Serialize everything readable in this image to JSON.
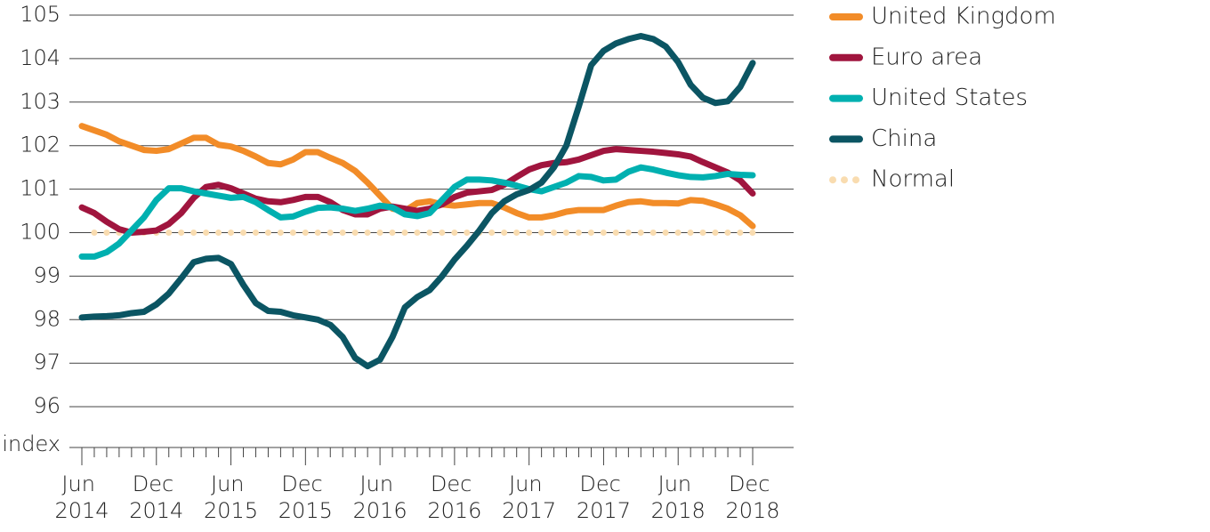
{
  "chart_data": {
    "type": "line",
    "ylabel": "index",
    "categories": [
      "Jun 2014",
      null,
      null,
      null,
      null,
      null,
      "Dec 2014",
      null,
      null,
      null,
      null,
      null,
      "Jun 2015",
      null,
      null,
      null,
      null,
      null,
      "Dec 2015",
      null,
      null,
      null,
      null,
      null,
      "Jun 2016",
      null,
      null,
      null,
      null,
      null,
      "Dec 2016",
      null,
      null,
      null,
      null,
      null,
      "Jun 2017",
      null,
      null,
      null,
      null,
      null,
      "Dec 2017",
      null,
      null,
      null,
      null,
      null,
      "Jun 2018",
      null,
      null,
      null,
      null,
      null,
      "Dec 2018"
    ],
    "ylim": [
      95,
      105
    ],
    "yticks": [
      96,
      97,
      98,
      99,
      100,
      101,
      102,
      103,
      104,
      105
    ],
    "grid": true,
    "legend": "right",
    "series": [
      {
        "name": "United Kingdom",
        "color": "#f28c28",
        "style": "solid",
        "values": [
          102.45,
          102.35,
          102.25,
          102.1,
          102.0,
          101.9,
          101.88,
          101.92,
          102.05,
          102.18,
          102.18,
          102.02,
          101.98,
          101.88,
          101.75,
          101.6,
          101.57,
          101.68,
          101.85,
          101.85,
          101.72,
          101.6,
          101.42,
          101.15,
          100.85,
          100.55,
          100.5,
          100.68,
          100.72,
          100.65,
          100.62,
          100.65,
          100.68,
          100.68,
          100.58,
          100.45,
          100.35,
          100.35,
          100.4,
          100.48,
          100.52,
          100.52,
          100.52,
          100.62,
          100.7,
          100.72,
          100.68,
          100.68,
          100.67,
          100.75,
          100.73,
          100.65,
          100.55,
          100.4,
          100.15
        ]
      },
      {
        "name": "Euro area",
        "color": "#a0153e",
        "style": "solid",
        "values": [
          100.58,
          100.45,
          100.25,
          100.08,
          100.0,
          100.02,
          100.05,
          100.2,
          100.45,
          100.8,
          101.05,
          101.1,
          101.02,
          100.9,
          100.78,
          100.72,
          100.7,
          100.75,
          100.82,
          100.82,
          100.7,
          100.52,
          100.42,
          100.42,
          100.55,
          100.6,
          100.55,
          100.5,
          100.55,
          100.65,
          100.82,
          100.92,
          100.95,
          100.98,
          101.1,
          101.28,
          101.45,
          101.55,
          101.6,
          101.62,
          101.68,
          101.78,
          101.88,
          101.92,
          101.9,
          101.88,
          101.86,
          101.83,
          101.8,
          101.75,
          101.62,
          101.5,
          101.38,
          101.2,
          100.9
        ]
      },
      {
        "name": "United States",
        "color": "#00b0b0",
        "style": "solid",
        "values": [
          99.45,
          99.45,
          99.55,
          99.75,
          100.05,
          100.35,
          100.75,
          101.02,
          101.02,
          100.95,
          100.9,
          100.85,
          100.8,
          100.82,
          100.7,
          100.52,
          100.35,
          100.37,
          100.48,
          100.57,
          100.58,
          100.55,
          100.5,
          100.55,
          100.62,
          100.58,
          100.42,
          100.38,
          100.45,
          100.75,
          101.05,
          101.22,
          101.22,
          101.2,
          101.15,
          101.08,
          101.0,
          100.95,
          101.05,
          101.15,
          101.3,
          101.28,
          101.2,
          101.22,
          101.4,
          101.5,
          101.45,
          101.38,
          101.32,
          101.28,
          101.27,
          101.3,
          101.35,
          101.33,
          101.32
        ]
      },
      {
        "name": "China",
        "color": "#0b5563",
        "style": "solid",
        "values": [
          98.05,
          98.07,
          98.08,
          98.1,
          98.15,
          98.18,
          98.35,
          98.6,
          98.95,
          99.32,
          99.4,
          99.42,
          99.28,
          98.8,
          98.38,
          98.2,
          98.18,
          98.1,
          98.05,
          98.0,
          97.88,
          97.6,
          97.12,
          96.93,
          97.08,
          97.6,
          98.28,
          98.52,
          98.68,
          99.0,
          99.38,
          99.7,
          100.05,
          100.45,
          100.72,
          100.88,
          100.98,
          101.15,
          101.5,
          102.0,
          102.9,
          103.85,
          104.18,
          104.35,
          104.45,
          104.52,
          104.45,
          104.28,
          103.92,
          103.4,
          103.1,
          102.98,
          103.02,
          103.35,
          103.9
        ]
      },
      {
        "name": "Normal",
        "color": "#f9dcb0",
        "style": "dotted",
        "values": [
          null,
          100,
          100,
          100,
          100,
          100,
          100,
          100,
          100,
          100,
          100,
          100,
          100,
          100,
          100,
          100,
          100,
          100,
          100,
          100,
          100,
          100,
          100,
          100,
          100,
          100,
          100,
          100,
          100,
          100,
          100,
          100,
          100,
          100,
          100,
          100,
          100,
          100,
          100,
          100,
          100,
          100,
          100,
          100,
          100,
          100,
          100,
          100,
          100,
          100,
          100,
          100,
          100,
          100,
          100
        ]
      }
    ]
  }
}
